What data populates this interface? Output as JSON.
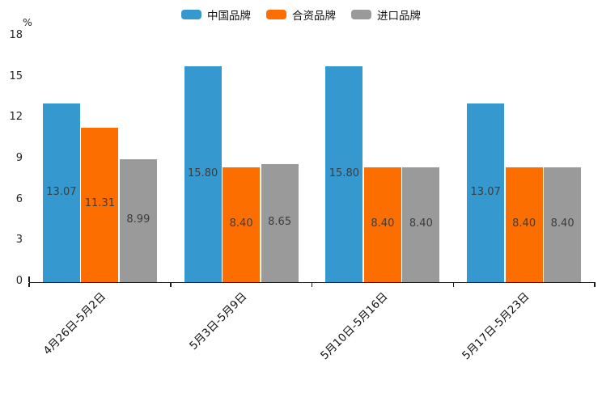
{
  "chart_data": {
    "type": "bar",
    "ylabel": "%",
    "categories": [
      "4月26日-5月2日",
      "5月3日-5月9日",
      "5月10日-5月16日",
      "5月17日-5月23日"
    ],
    "series": [
      {
        "name": "中国品牌",
        "color": "#3598CE",
        "values": [
          13.07,
          15.8,
          15.8,
          13.07
        ]
      },
      {
        "name": "合资品牌",
        "color": "#FC6E00",
        "values": [
          11.31,
          8.4,
          8.4,
          8.4
        ]
      },
      {
        "name": "进口品牌",
        "color": "#9A9A9A",
        "values": [
          8.99,
          8.65,
          8.4,
          8.4
        ]
      }
    ],
    "ylim": [
      0,
      18
    ],
    "yticks": [
      0,
      3,
      6,
      9,
      12,
      15,
      18
    ],
    "legend_position": "top",
    "grid": false,
    "value_label_decimals": 2
  }
}
